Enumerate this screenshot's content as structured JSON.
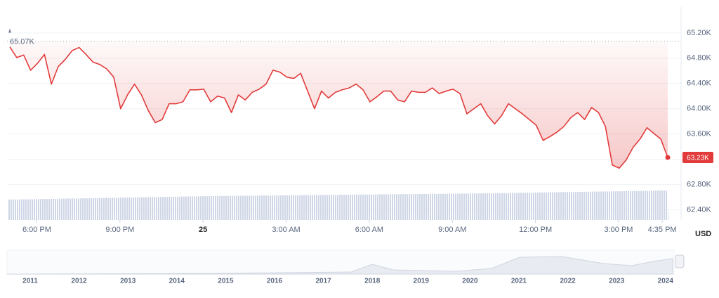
{
  "chart_data": {
    "type": "line",
    "color": "#e23b3b",
    "currency": "USD",
    "values": [
      64980,
      64810,
      64850,
      64610,
      64720,
      64860,
      64390,
      64670,
      64780,
      64920,
      64970,
      64860,
      64740,
      64700,
      64630,
      64500,
      64000,
      64220,
      64390,
      64220,
      63970,
      63780,
      63830,
      64080,
      64080,
      64110,
      64300,
      64300,
      64310,
      64110,
      64200,
      64170,
      63940,
      64220,
      64140,
      64260,
      64310,
      64390,
      64610,
      64580,
      64500,
      64480,
      64560,
      64280,
      64000,
      64280,
      64170,
      64260,
      64300,
      64330,
      64390,
      64300,
      64110,
      64190,
      64280,
      64280,
      64140,
      64110,
      64280,
      64260,
      64260,
      64330,
      64240,
      64280,
      64310,
      64240,
      63920,
      64000,
      64080,
      63890,
      63760,
      63890,
      64080,
      64000,
      63920,
      63830,
      63740,
      63500,
      63560,
      63630,
      63720,
      63860,
      63940,
      63830,
      64020,
      63940,
      63720,
      63110,
      63060,
      63190,
      63390,
      63520,
      63700,
      63610,
      63520,
      63230
    ],
    "xlim": [
      0,
      95
    ],
    "xticks": [
      {
        "value": 3.9,
        "label": "6:00 PM"
      },
      {
        "value": 15.9,
        "label": "9:00 PM"
      },
      {
        "value": 27.9,
        "label": "25"
      },
      {
        "value": 39.9,
        "label": "3:00 AM"
      },
      {
        "value": 51.9,
        "label": "6:00 AM"
      },
      {
        "value": 63.9,
        "label": "9:00 AM"
      },
      {
        "value": 75.9,
        "label": "12:00 PM"
      },
      {
        "value": 87.9,
        "label": "3:00 PM"
      },
      {
        "value": 94.2,
        "label": "4:35 PM"
      }
    ],
    "ylim": [
      62240,
      65610
    ],
    "yticks": [
      {
        "value": 62400,
        "label": "62.40K"
      },
      {
        "value": 62800,
        "label": "62.80K"
      },
      {
        "value": 63200,
        "label": "63.20K"
      },
      {
        "value": 63600,
        "label": "63.60K"
      },
      {
        "value": 64000,
        "label": "64.00K"
      },
      {
        "value": 64400,
        "label": "64.40K"
      },
      {
        "value": 64800,
        "label": "64.80K"
      },
      {
        "value": 65200,
        "label": "65.20K"
      }
    ],
    "grid": true,
    "open_price": {
      "value": 65070,
      "label": "65.07K"
    },
    "last_price": {
      "value": 63230,
      "label": "63.23K"
    }
  },
  "navigator": {
    "years": [
      "2011",
      "2012",
      "2013",
      "2014",
      "2015",
      "2016",
      "2017",
      "2018",
      "2019",
      "2020",
      "2021",
      "2022",
      "2023",
      "2024"
    ]
  }
}
